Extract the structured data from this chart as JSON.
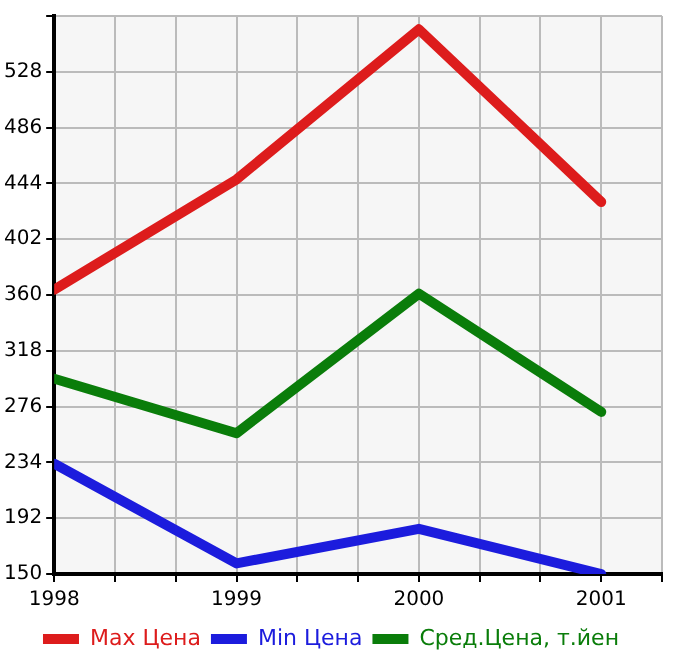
{
  "chart_data": {
    "type": "line",
    "x": [
      1998,
      1999,
      2000,
      2001
    ],
    "xlim": [
      1998,
      2001.3333
    ],
    "xticks": [
      1998,
      {
        "value": 1998.3333,
        "label": null
      },
      {
        "value": 1998.6667,
        "label": null
      },
      1999,
      {
        "value": 1999.3333,
        "label": null
      },
      {
        "value": 1999.6667,
        "label": null
      },
      2000,
      {
        "value": 2000.3333,
        "label": null
      },
      {
        "value": 2000.6667,
        "label": null
      },
      2001,
      {
        "value": 2001.3333,
        "label": null
      }
    ],
    "ylim": [
      150,
      570
    ],
    "yticks": [
      150,
      192,
      234,
      276,
      318,
      360,
      402,
      444,
      486,
      528,
      {
        "value": 570,
        "label": null
      }
    ],
    "grid": true,
    "legend": "bottom",
    "marker": "none",
    "line_style": "solid",
    "series": [
      {
        "name": "Max Цена",
        "color": "#dd1c1c",
        "values": [
          364,
          447,
          560,
          430
        ]
      },
      {
        "name": "Min Цена",
        "color": "#1c1cdd",
        "values": [
          233,
          158,
          184,
          150
        ]
      },
      {
        "name": "Сред.Цена, т.йен",
        "color": "#0a7d0a",
        "values": [
          297,
          256,
          361,
          272
        ]
      }
    ]
  }
}
